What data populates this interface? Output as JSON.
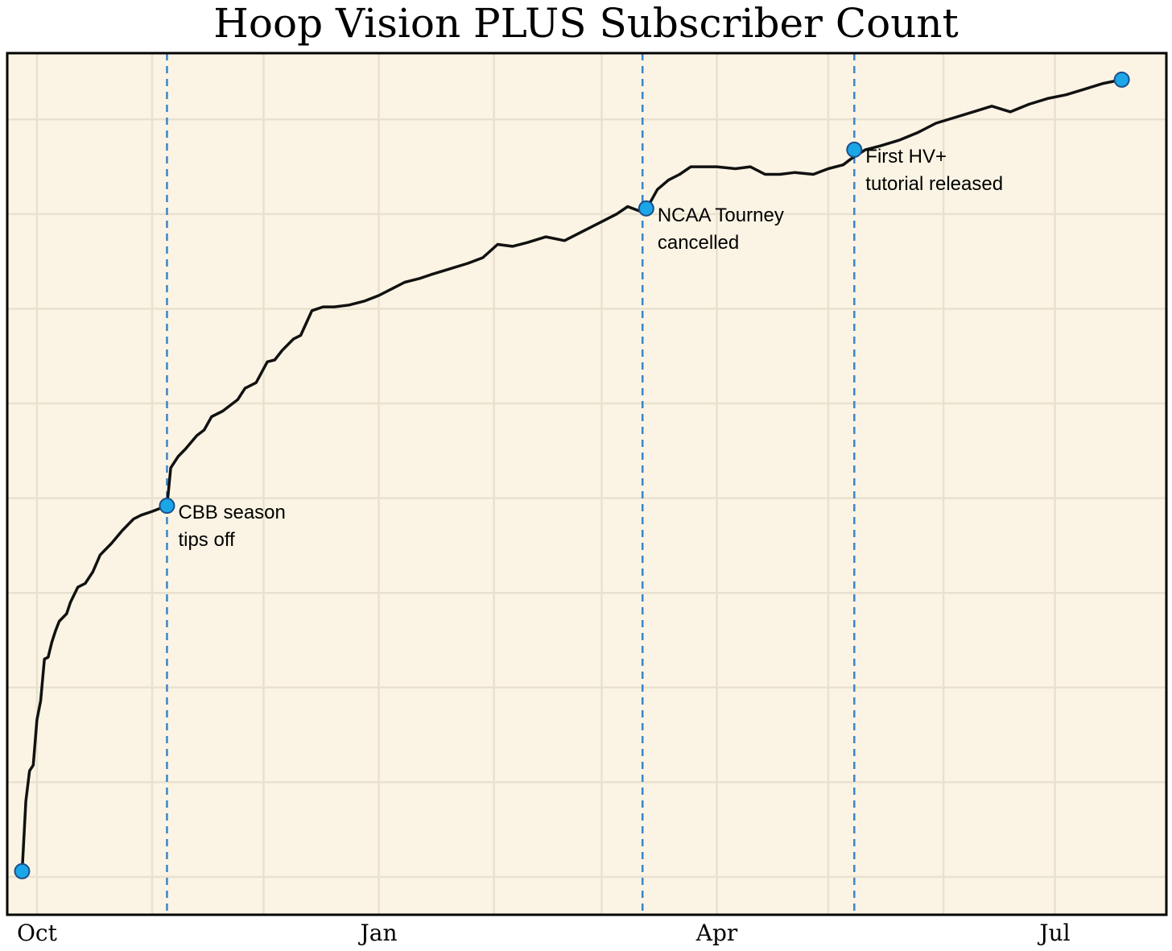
{
  "chart_data": {
    "type": "line",
    "title": "Hoop Vision PLUS Subscriber Count",
    "xlabel": "",
    "ylabel": "",
    "x_ticks": [
      "Oct",
      "Jan",
      "Apr",
      "Jul"
    ],
    "x_range": [
      "2019-09-23",
      "2020-07-31"
    ],
    "grid": true,
    "y_ticks_labeled": false,
    "colors": {
      "background": "#fbf4e4",
      "grid": "#e9e1cf",
      "line": "#111111",
      "marker": "#1ba6e8",
      "marker_edge": "#1d4f8a",
      "event_line": "#3a85c9"
    },
    "series": [
      {
        "name": "",
        "points": [
          [
            "2019-09-27",
            0.3
          ],
          [
            "2019-09-28",
            4
          ],
          [
            "2019-09-29",
            5.6
          ],
          [
            "2019-09-30",
            5.9
          ],
          [
            "2019-10-01",
            8.3
          ],
          [
            "2019-10-02",
            9.3
          ],
          [
            "2019-10-03",
            11.5
          ],
          [
            "2019-10-04",
            11.6
          ],
          [
            "2019-10-05",
            12.4
          ],
          [
            "2019-10-06",
            13.0
          ],
          [
            "2019-10-07",
            13.5
          ],
          [
            "2019-10-09",
            13.9
          ],
          [
            "2019-10-10",
            14.5
          ],
          [
            "2019-10-12",
            15.3
          ],
          [
            "2019-10-14",
            15.5
          ],
          [
            "2019-10-16",
            16.1
          ],
          [
            "2019-10-18",
            17.0
          ],
          [
            "2019-10-21",
            17.6
          ],
          [
            "2019-10-24",
            18.3
          ],
          [
            "2019-10-27",
            18.9
          ],
          [
            "2019-10-29",
            19.1
          ],
          [
            "2019-11-01",
            19.3
          ],
          [
            "2019-11-05",
            19.6
          ],
          [
            "2019-11-06",
            21.6
          ],
          [
            "2019-11-08",
            22.2
          ],
          [
            "2019-11-10",
            22.6
          ],
          [
            "2019-11-13",
            23.3
          ],
          [
            "2019-11-15",
            23.6
          ],
          [
            "2019-11-17",
            24.3
          ],
          [
            "2019-11-20",
            24.6
          ],
          [
            "2019-11-24",
            25.2
          ],
          [
            "2019-11-26",
            25.8
          ],
          [
            "2019-11-29",
            26.1
          ],
          [
            "2019-12-02",
            27.2
          ],
          [
            "2019-12-04",
            27.3
          ],
          [
            "2019-12-06",
            27.8
          ],
          [
            "2019-12-09",
            28.4
          ],
          [
            "2019-12-11",
            28.6
          ],
          [
            "2019-12-14",
            29.9
          ],
          [
            "2019-12-17",
            30.1
          ],
          [
            "2019-12-20",
            30.1
          ],
          [
            "2019-12-24",
            30.2
          ],
          [
            "2019-12-28",
            30.4
          ],
          [
            "2020-01-01",
            30.7
          ],
          [
            "2020-01-05",
            31.1
          ],
          [
            "2020-01-08",
            31.4
          ],
          [
            "2020-01-12",
            31.6
          ],
          [
            "2020-01-15",
            31.8
          ],
          [
            "2020-01-20",
            32.1
          ],
          [
            "2020-01-25",
            32.4
          ],
          [
            "2020-01-29",
            32.7
          ],
          [
            "2020-02-02",
            33.4
          ],
          [
            "2020-02-06",
            33.3
          ],
          [
            "2020-02-10",
            33.5
          ],
          [
            "2020-02-15",
            33.8
          ],
          [
            "2020-02-20",
            33.6
          ],
          [
            "2020-02-25",
            34.1
          ],
          [
            "2020-03-01",
            34.6
          ],
          [
            "2020-03-05",
            35.0
          ],
          [
            "2020-03-08",
            35.4
          ],
          [
            "2020-03-12",
            35.1
          ],
          [
            "2020-03-14",
            35.6
          ],
          [
            "2020-03-16",
            36.3
          ],
          [
            "2020-03-19",
            36.8
          ],
          [
            "2020-03-22",
            37.1
          ],
          [
            "2020-03-25",
            37.5
          ],
          [
            "2020-03-28",
            37.5
          ],
          [
            "2020-04-01",
            37.5
          ],
          [
            "2020-04-06",
            37.4
          ],
          [
            "2020-04-10",
            37.5
          ],
          [
            "2020-04-14",
            37.1
          ],
          [
            "2020-04-18",
            37.1
          ],
          [
            "2020-04-22",
            37.2
          ],
          [
            "2020-04-27",
            37.1
          ],
          [
            "2020-05-01",
            37.4
          ],
          [
            "2020-05-05",
            37.6
          ],
          [
            "2020-05-07",
            37.9
          ],
          [
            "2020-05-11",
            38.4
          ],
          [
            "2020-05-15",
            38.6
          ],
          [
            "2020-05-20",
            38.9
          ],
          [
            "2020-05-25",
            39.3
          ],
          [
            "2020-05-30",
            39.8
          ],
          [
            "2020-06-04",
            40.1
          ],
          [
            "2020-06-09",
            40.4
          ],
          [
            "2020-06-14",
            40.7
          ],
          [
            "2020-06-19",
            40.4
          ],
          [
            "2020-06-24",
            40.8
          ],
          [
            "2020-06-29",
            41.1
          ],
          [
            "2020-07-04",
            41.3
          ],
          [
            "2020-07-09",
            41.6
          ],
          [
            "2020-07-14",
            41.9
          ],
          [
            "2020-07-19",
            42.1
          ]
        ]
      }
    ],
    "markers": [
      [
        "2019-09-27",
        0.3
      ],
      [
        "2019-11-05",
        19.6
      ],
      [
        "2020-03-13",
        35.3
      ],
      [
        "2020-05-08",
        38.4
      ],
      [
        "2020-07-19",
        42.1
      ]
    ],
    "events": [
      {
        "date": "2019-11-05",
        "label_lines": [
          "CBB season",
          "tips off"
        ]
      },
      {
        "date": "2020-03-12",
        "label_lines": [
          "NCAA Tourney",
          "cancelled"
        ]
      },
      {
        "date": "2020-05-08",
        "label_lines": [
          "First HV+",
          "tutorial released"
        ]
      }
    ]
  }
}
